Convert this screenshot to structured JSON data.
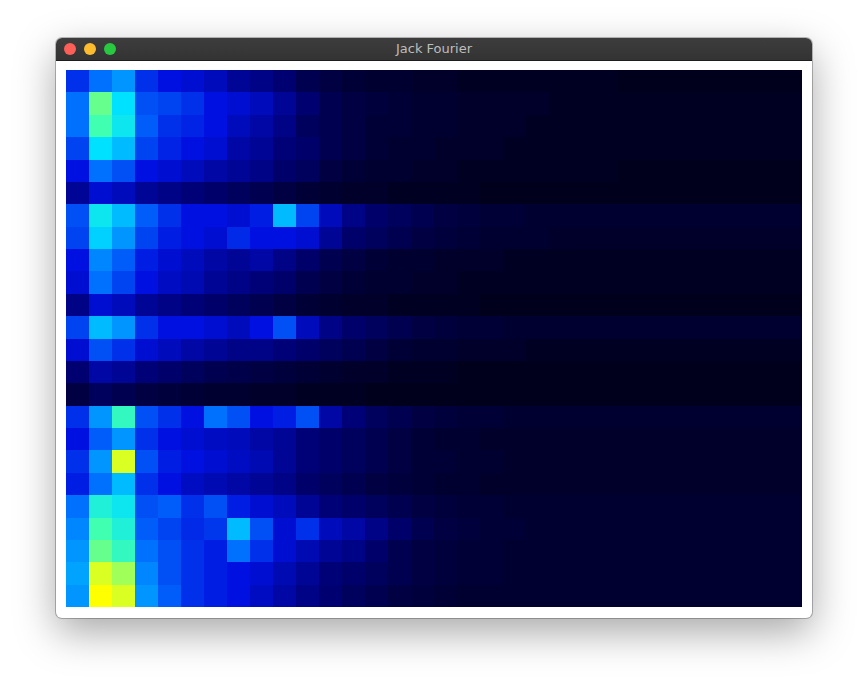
{
  "window": {
    "title": "Jack Fourier"
  },
  "chart_data": {
    "type": "heatmap",
    "tick_labels": false,
    "zlim": [
      0,
      100
    ],
    "cells": [
      [
        35,
        45,
        50,
        35,
        30,
        28,
        25,
        20,
        18,
        15,
        10,
        8,
        6,
        5,
        5,
        4,
        4,
        3,
        3,
        3,
        3,
        3,
        3,
        3,
        2,
        2,
        2,
        2,
        2,
        2,
        2,
        2
      ],
      [
        45,
        72,
        60,
        40,
        38,
        35,
        30,
        28,
        25,
        20,
        15,
        10,
        8,
        7,
        6,
        5,
        5,
        4,
        4,
        4,
        4,
        3,
        3,
        3,
        3,
        3,
        3,
        3,
        3,
        3,
        3,
        3
      ],
      [
        45,
        70,
        62,
        42,
        35,
        33,
        30,
        25,
        22,
        18,
        12,
        10,
        8,
        6,
        6,
        5,
        5,
        4,
        4,
        4,
        3,
        3,
        3,
        3,
        3,
        3,
        3,
        3,
        3,
        3,
        3,
        3
      ],
      [
        38,
        60,
        55,
        38,
        33,
        30,
        28,
        22,
        20,
        16,
        14,
        10,
        8,
        6,
        5,
        5,
        4,
        4,
        4,
        3,
        3,
        3,
        3,
        3,
        3,
        3,
        3,
        3,
        3,
        3,
        3,
        3
      ],
      [
        30,
        45,
        40,
        30,
        28,
        25,
        22,
        20,
        18,
        14,
        12,
        8,
        6,
        5,
        5,
        4,
        4,
        3,
        3,
        3,
        3,
        3,
        3,
        3,
        2,
        2,
        2,
        2,
        2,
        2,
        2,
        2
      ],
      [
        20,
        28,
        25,
        20,
        18,
        16,
        14,
        12,
        10,
        8,
        6,
        5,
        4,
        4,
        3,
        3,
        3,
        3,
        2,
        2,
        2,
        2,
        2,
        2,
        2,
        2,
        2,
        2,
        2,
        2,
        2,
        2
      ],
      [
        40,
        62,
        55,
        42,
        35,
        30,
        30,
        28,
        32,
        55,
        38,
        25,
        18,
        14,
        12,
        10,
        8,
        7,
        6,
        6,
        5,
        5,
        5,
        5,
        5,
        5,
        5,
        5,
        5,
        5,
        5,
        5
      ],
      [
        38,
        58,
        50,
        38,
        32,
        30,
        28,
        34,
        30,
        30,
        28,
        20,
        14,
        12,
        10,
        8,
        7,
        6,
        5,
        5,
        5,
        4,
        4,
        4,
        4,
        4,
        4,
        4,
        4,
        4,
        4,
        4
      ],
      [
        30,
        48,
        42,
        32,
        28,
        25,
        22,
        20,
        22,
        18,
        14,
        10,
        8,
        6,
        5,
        5,
        4,
        4,
        4,
        3,
        3,
        3,
        3,
        3,
        3,
        3,
        3,
        3,
        3,
        3,
        3,
        3
      ],
      [
        28,
        45,
        38,
        30,
        26,
        24,
        20,
        18,
        16,
        14,
        10,
        8,
        6,
        5,
        5,
        4,
        4,
        3,
        3,
        3,
        3,
        3,
        3,
        3,
        3,
        3,
        3,
        3,
        3,
        3,
        3,
        3
      ],
      [
        18,
        28,
        25,
        20,
        18,
        16,
        14,
        12,
        10,
        8,
        6,
        5,
        4,
        4,
        3,
        3,
        3,
        3,
        2,
        2,
        2,
        2,
        2,
        2,
        2,
        2,
        2,
        2,
        2,
        2,
        2,
        2
      ],
      [
        38,
        55,
        50,
        35,
        30,
        30,
        28,
        25,
        30,
        40,
        25,
        18,
        14,
        12,
        10,
        8,
        7,
        6,
        6,
        5,
        5,
        5,
        5,
        5,
        5,
        5,
        5,
        5,
        5,
        5,
        5,
        5
      ],
      [
        28,
        40,
        35,
        28,
        25,
        22,
        20,
        18,
        18,
        16,
        14,
        12,
        10,
        8,
        6,
        5,
        5,
        4,
        4,
        4,
        3,
        3,
        3,
        3,
        3,
        3,
        3,
        3,
        3,
        3,
        3,
        3
      ],
      [
        15,
        22,
        20,
        16,
        14,
        12,
        10,
        9,
        8,
        7,
        6,
        5,
        4,
        4,
        3,
        3,
        3,
        2,
        2,
        2,
        2,
        2,
        2,
        2,
        2,
        2,
        2,
        2,
        2,
        2,
        2,
        2
      ],
      [
        8,
        12,
        10,
        8,
        7,
        6,
        5,
        5,
        4,
        4,
        3,
        3,
        3,
        2,
        2,
        2,
        2,
        2,
        2,
        2,
        2,
        2,
        2,
        2,
        2,
        2,
        2,
        2,
        2,
        2,
        2,
        2
      ],
      [
        35,
        50,
        68,
        40,
        35,
        30,
        45,
        40,
        30,
        32,
        40,
        22,
        16,
        12,
        10,
        8,
        7,
        6,
        6,
        5,
        5,
        5,
        5,
        5,
        5,
        5,
        5,
        5,
        5,
        5,
        5,
        5
      ],
      [
        30,
        42,
        50,
        35,
        30,
        28,
        26,
        25,
        22,
        20,
        16,
        14,
        12,
        10,
        8,
        6,
        5,
        5,
        4,
        4,
        4,
        4,
        4,
        4,
        4,
        4,
        4,
        4,
        4,
        4,
        4,
        4
      ],
      [
        35,
        50,
        78,
        40,
        32,
        30,
        28,
        26,
        24,
        20,
        16,
        14,
        12,
        10,
        8,
        6,
        6,
        5,
        5,
        4,
        4,
        4,
        4,
        4,
        4,
        4,
        4,
        4,
        4,
        4,
        4,
        4
      ],
      [
        32,
        45,
        55,
        35,
        30,
        26,
        24,
        22,
        20,
        18,
        14,
        12,
        10,
        8,
        7,
        6,
        5,
        5,
        4,
        4,
        4,
        4,
        4,
        4,
        4,
        4,
        4,
        4,
        4,
        4,
        4,
        4
      ],
      [
        45,
        65,
        62,
        40,
        42,
        35,
        40,
        32,
        28,
        25,
        20,
        16,
        14,
        12,
        10,
        8,
        7,
        6,
        6,
        5,
        5,
        5,
        5,
        5,
        5,
        5,
        5,
        5,
        5,
        5,
        5,
        5
      ],
      [
        48,
        70,
        65,
        42,
        38,
        34,
        36,
        55,
        40,
        28,
        35,
        25,
        22,
        18,
        14,
        10,
        8,
        7,
        6,
        6,
        5,
        5,
        5,
        5,
        5,
        5,
        5,
        5,
        5,
        5,
        5,
        5
      ],
      [
        50,
        72,
        68,
        45,
        40,
        35,
        32,
        45,
        35,
        28,
        24,
        20,
        18,
        14,
        10,
        8,
        7,
        6,
        6,
        5,
        5,
        5,
        5,
        5,
        5,
        5,
        5,
        5,
        5,
        5,
        5,
        5
      ],
      [
        52,
        78,
        75,
        48,
        40,
        35,
        32,
        30,
        28,
        24,
        20,
        16,
        14,
        12,
        10,
        8,
        7,
        6,
        6,
        5,
        5,
        5,
        5,
        5,
        5,
        5,
        5,
        5,
        5,
        5,
        5,
        5
      ],
      [
        50,
        80,
        78,
        50,
        42,
        35,
        32,
        30,
        26,
        22,
        18,
        15,
        12,
        10,
        8,
        7,
        6,
        5,
        5,
        5,
        5,
        5,
        5,
        5,
        5,
        5,
        5,
        5,
        5,
        5,
        5,
        5
      ]
    ]
  }
}
